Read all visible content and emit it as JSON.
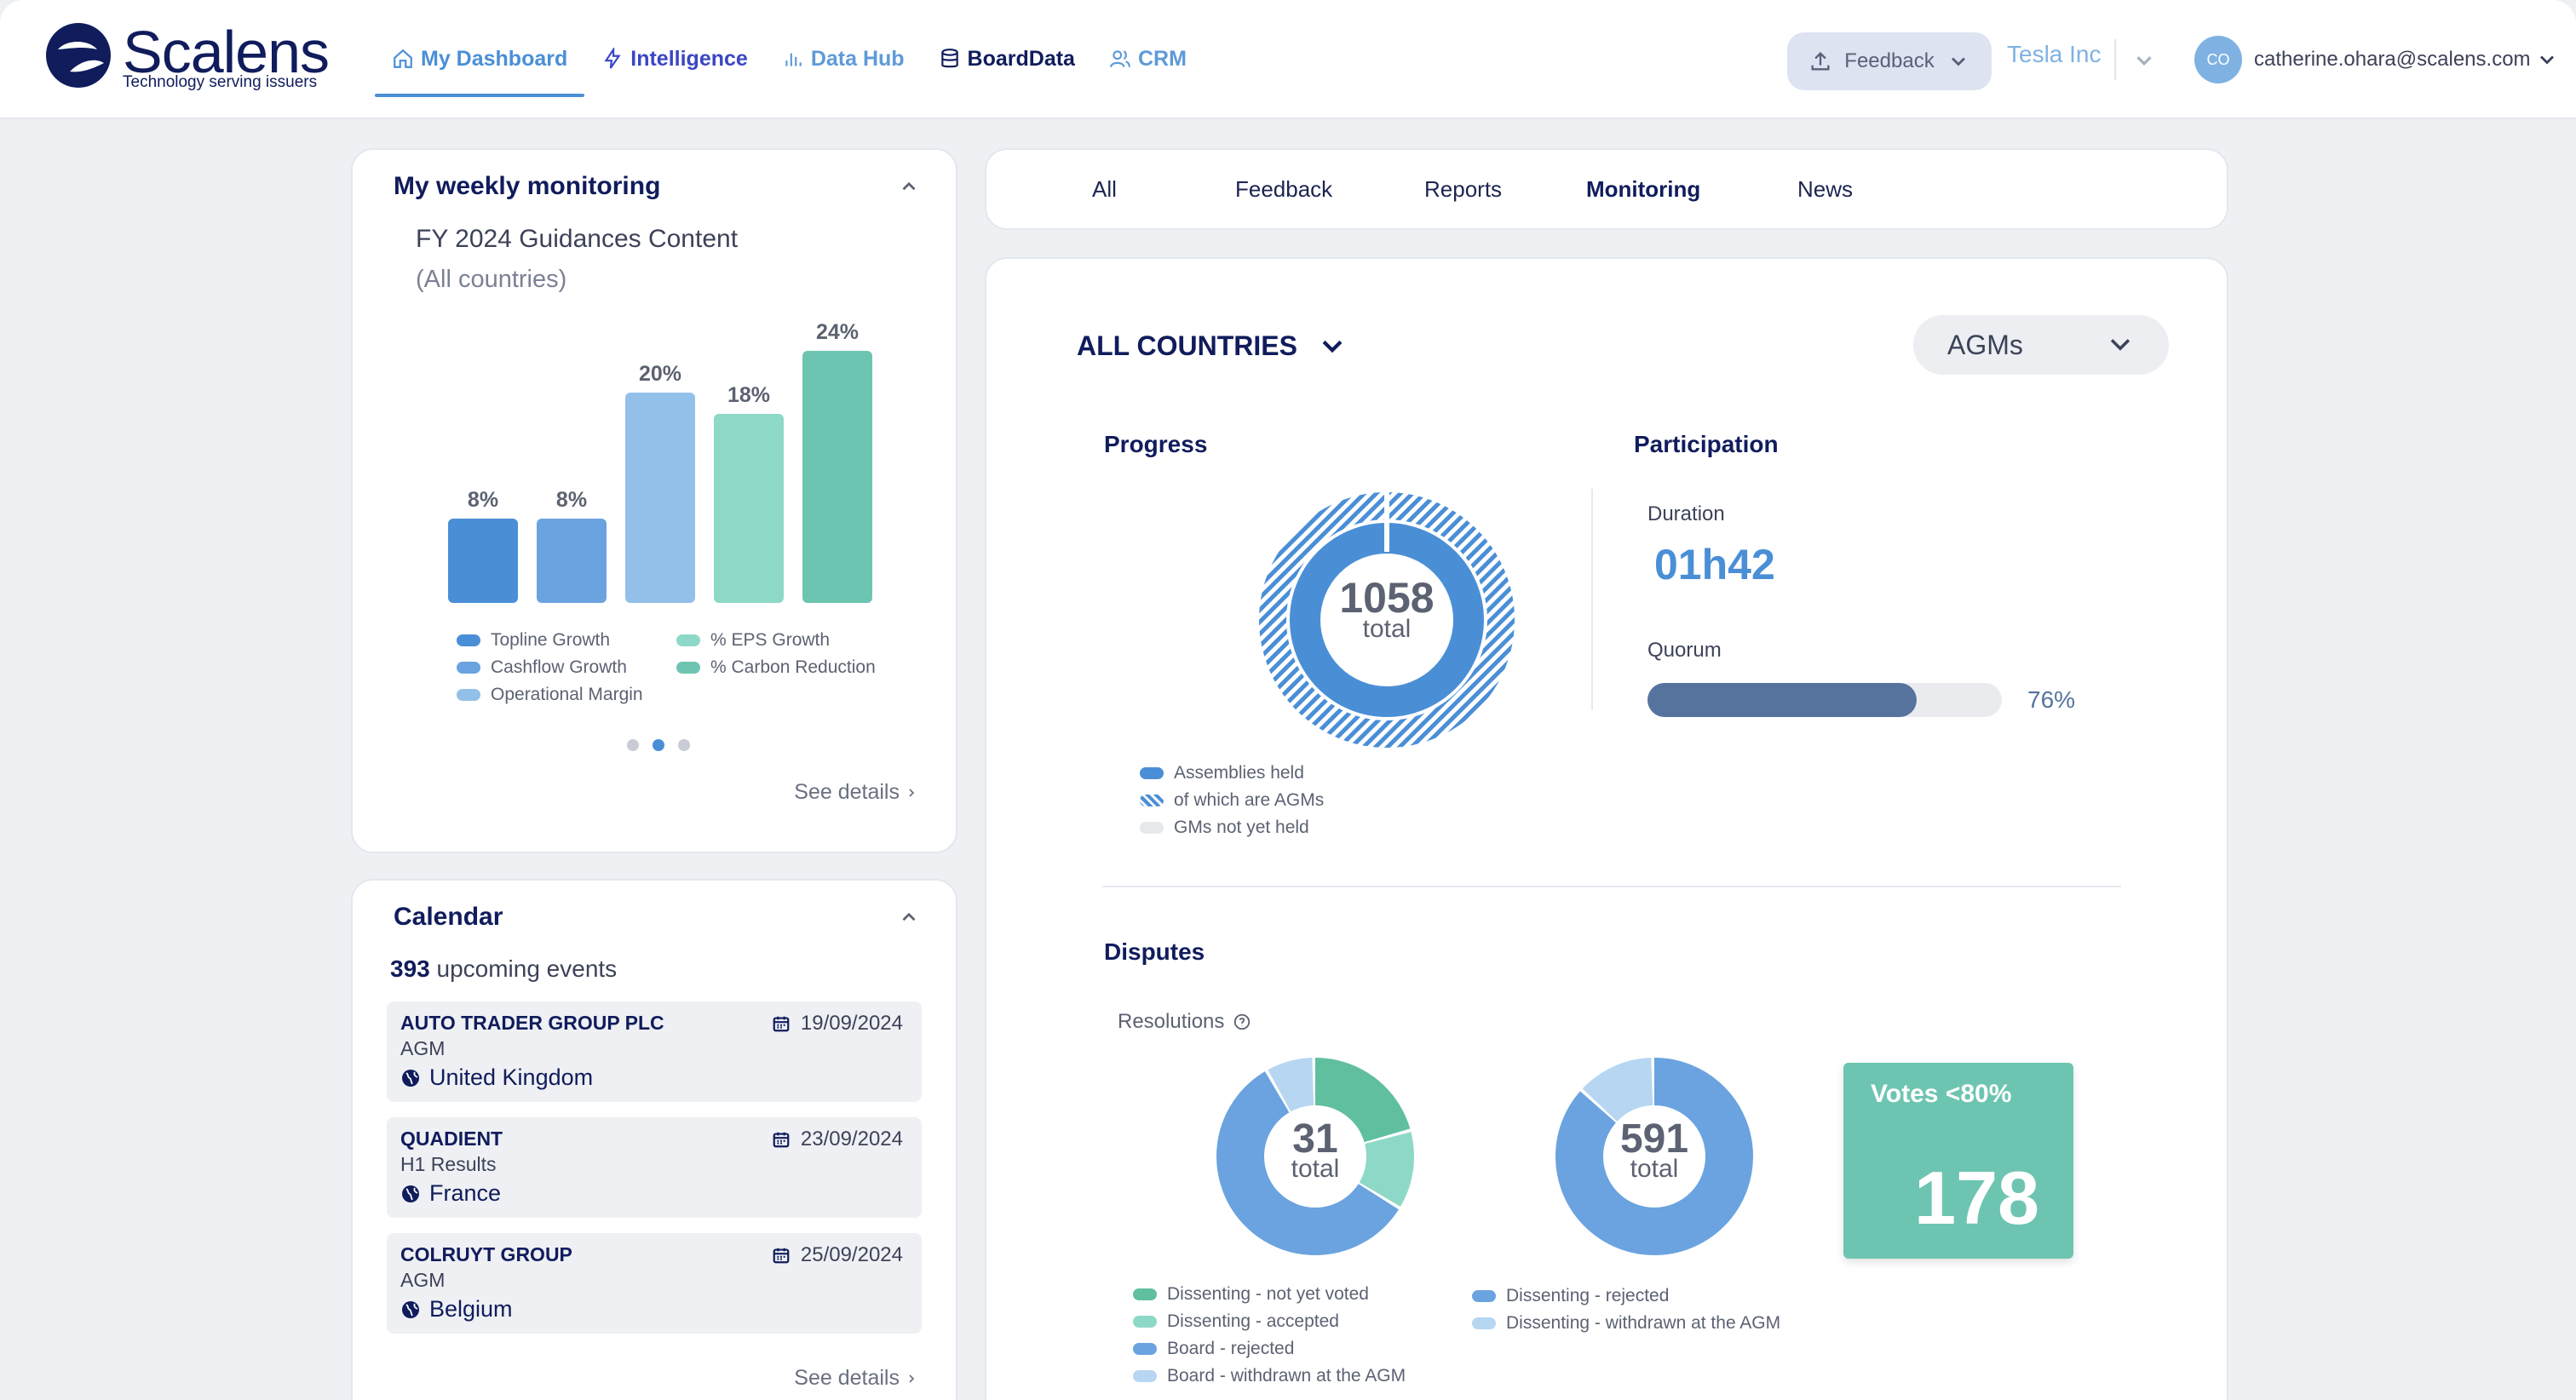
{
  "brand": {
    "name": "Scalens",
    "tagline": "Technology serving issuers"
  },
  "nav": [
    {
      "label": "My Dashboard",
      "icon": "home-icon",
      "active": true
    },
    {
      "label": "Intelligence",
      "icon": "bolt-icon"
    },
    {
      "label": "Data Hub",
      "icon": "bar-chart-icon"
    },
    {
      "label": "BoardData",
      "icon": "database-icon"
    },
    {
      "label": "CRM",
      "icon": "users-icon"
    }
  ],
  "header": {
    "feedback_label": "Feedback",
    "company": "Tesla Inc",
    "avatar_initials": "CO",
    "user_email": "catherine.ohara@scalens.com"
  },
  "weekly": {
    "title": "My weekly monitoring",
    "subtitle": "FY 2024 Guidances Content",
    "scope": "(All countries)",
    "see_details": "See details",
    "carousel_page": 2,
    "carousel_total": 3
  },
  "chart_data": {
    "type": "bar",
    "title": "FY 2024 Guidances Content",
    "subtitle": "(All countries)",
    "categories": [
      "Topline Growth",
      "Cashflow Growth",
      "Operational Margin",
      "% EPS Growth",
      "% Carbon Reduction"
    ],
    "values": [
      8,
      8,
      20,
      18,
      24
    ],
    "value_labels": [
      "8%",
      "8%",
      "20%",
      "18%",
      "24%"
    ],
    "colors": [
      "#4a8fd6",
      "#6aa3df",
      "#93c0e8",
      "#8ed8c7",
      "#6dc5b1"
    ],
    "ylim": [
      0,
      24
    ],
    "legend_position": "bottom"
  },
  "calendar": {
    "title": "Calendar",
    "count": "393",
    "count_suffix": "upcoming events",
    "see_details": "See details",
    "events": [
      {
        "company": "AUTO TRADER GROUP PLC",
        "type": "AGM",
        "country": "United Kingdom",
        "date": "19/09/2024"
      },
      {
        "company": "QUADIENT",
        "type": "H1 Results",
        "country": "France",
        "date": "23/09/2024"
      },
      {
        "company": "COLRUYT GROUP",
        "type": "AGM",
        "country": "Belgium",
        "date": "25/09/2024"
      }
    ]
  },
  "tabs": [
    {
      "label": "All"
    },
    {
      "label": "Feedback"
    },
    {
      "label": "Reports"
    },
    {
      "label": "Monitoring",
      "active": true
    },
    {
      "label": "News"
    }
  ],
  "filters": {
    "country": "ALL COUNTRIES",
    "meeting_type": "AGMs"
  },
  "progress": {
    "title": "Progress",
    "total": "1058",
    "total_label": "total",
    "assemblies_held_fraction": 1.0,
    "legend": [
      "Assemblies held",
      "of which are AGMs",
      "GMs not yet held"
    ],
    "colors": {
      "held": "#4a8fd6",
      "agms": "#4a8fd6",
      "not_held": "#e6e8ec"
    }
  },
  "participation": {
    "title": "Participation",
    "duration_label": "Duration",
    "duration": "01h42",
    "quorum_label": "Quorum",
    "quorum_pct": 76,
    "quorum_text": "76%"
  },
  "disputes": {
    "title": "Disputes",
    "resolutions_label": "Resolutions",
    "board": {
      "total": "31",
      "total_label": "total",
      "segments": [
        {
          "label": "Dissenting - not yet voted",
          "share": 0.21,
          "color": "#5fbf9f"
        },
        {
          "label": "Dissenting - accepted",
          "share": 0.13,
          "color": "#8ed8c7"
        },
        {
          "label": "Board - rejected",
          "share": 0.58,
          "color": "#6aa3df"
        },
        {
          "label": "Board - withdrawn at the AGM",
          "share": 0.08,
          "color": "#b7d6f2"
        }
      ]
    },
    "dissenting": {
      "total": "591",
      "total_label": "total",
      "segments": [
        {
          "label": "Dissenting - rejected",
          "share": 0.87,
          "color": "#6aa3df"
        },
        {
          "label": "Dissenting - withdrawn at the AGM",
          "share": 0.13,
          "color": "#b7d6f2"
        }
      ]
    },
    "votes": {
      "label": "Votes <80%",
      "value": "178"
    }
  }
}
